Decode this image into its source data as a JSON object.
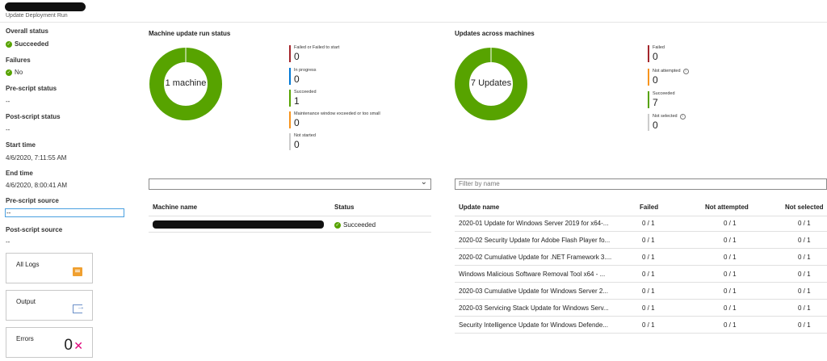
{
  "header": {
    "subtitle": "Update Deployment Run"
  },
  "left": {
    "overall_status_label": "Overall status",
    "overall_status_value": "Succeeded",
    "failures_label": "Failures",
    "failures_value": "No",
    "pre_script_status_label": "Pre-script status",
    "pre_script_status_value": "--",
    "post_script_status_label": "Post-script status",
    "post_script_status_value": "--",
    "start_time_label": "Start time",
    "start_time_value": "4/6/2020, 7:11:55 AM",
    "end_time_label": "End time",
    "end_time_value": "4/6/2020, 8:00:41 AM",
    "pre_script_source_label": "Pre-script source",
    "pre_script_source_value": "--",
    "post_script_source_label": "Post-script source",
    "post_script_source_value": "--"
  },
  "tiles": {
    "all_logs": "All Logs",
    "output": "Output",
    "errors": "Errors",
    "errors_count": "0"
  },
  "machine_status": {
    "title": "Machine update run status",
    "center_label": "1 machine",
    "legend": [
      {
        "label": "Failed or Failed to start",
        "value": "0",
        "color": "#a4262c"
      },
      {
        "label": "In progress",
        "value": "0",
        "color": "#0078d4"
      },
      {
        "label": "Succeeded",
        "value": "1",
        "color": "#57a300"
      },
      {
        "label": "Maintenance window exceeded or too small",
        "value": "0",
        "color": "#f7941d"
      },
      {
        "label": "Not started",
        "value": "0",
        "color": "#cccccc"
      }
    ]
  },
  "updates_status": {
    "title": "Updates across machines",
    "center_label": "7 Updates",
    "legend": [
      {
        "label": "Failed",
        "value": "0",
        "color": "#a4262c"
      },
      {
        "label": "Not attempted",
        "value": "0",
        "color": "#f7941d"
      },
      {
        "label": "Succeeded",
        "value": "7",
        "color": "#57a300"
      },
      {
        "label": "Not selected",
        "value": "0",
        "color": "#cccccc"
      }
    ]
  },
  "filter_placeholder": "Filter by name",
  "machine_table": {
    "headers": {
      "name": "Machine name",
      "status": "Status"
    },
    "rows": [
      {
        "status": "Succeeded"
      }
    ]
  },
  "updates_table": {
    "headers": {
      "name": "Update name",
      "failed": "Failed",
      "not_attempted": "Not attempted",
      "not_selected": "Not selected"
    },
    "rows": [
      {
        "name": "2020-01 Update for Windows Server 2019 for x64-...",
        "failed": "0 / 1",
        "not_attempted": "0 / 1",
        "not_selected": "0 / 1"
      },
      {
        "name": "2020-02 Security Update for Adobe Flash Player fo...",
        "failed": "0 / 1",
        "not_attempted": "0 / 1",
        "not_selected": "0 / 1"
      },
      {
        "name": "2020-02 Cumulative Update for .NET Framework 3....",
        "failed": "0 / 1",
        "not_attempted": "0 / 1",
        "not_selected": "0 / 1"
      },
      {
        "name": "Windows Malicious Software Removal Tool x64 - ...",
        "failed": "0 / 1",
        "not_attempted": "0 / 1",
        "not_selected": "0 / 1"
      },
      {
        "name": "2020-03 Cumulative Update for Windows Server 2...",
        "failed": "0 / 1",
        "not_attempted": "0 / 1",
        "not_selected": "0 / 1"
      },
      {
        "name": "2020-03 Servicing Stack Update for Windows Serv...",
        "failed": "0 / 1",
        "not_attempted": "0 / 1",
        "not_selected": "0 / 1"
      },
      {
        "name": "Security Intelligence Update for Windows Defende...",
        "failed": "0 / 1",
        "not_attempted": "0 / 1",
        "not_selected": "0 / 1"
      }
    ]
  },
  "colors": {
    "success": "#57a300",
    "accent": "#0078d4",
    "error_x": "#e0007a"
  }
}
